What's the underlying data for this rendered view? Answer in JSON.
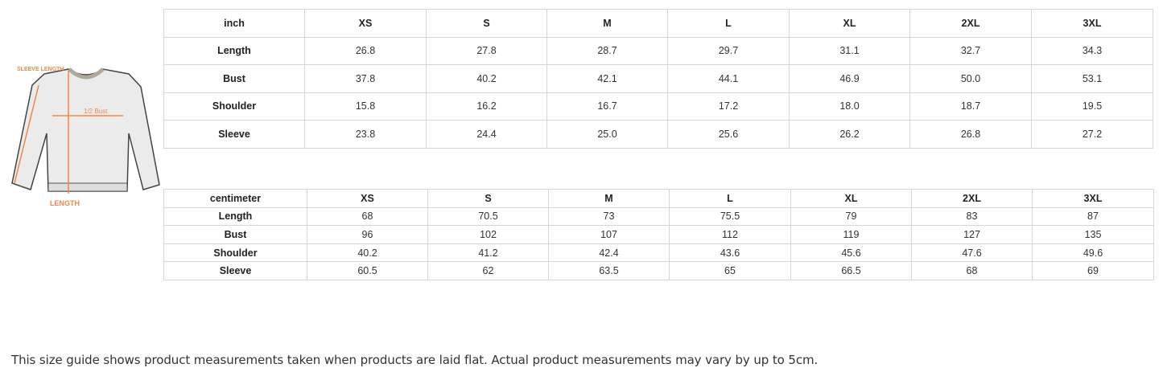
{
  "illustration": {
    "labels": {
      "sleeve": "SLEEVE LENGTH",
      "bust": "1/2 Bust",
      "length": "LENGTH"
    },
    "accent_color": "#f0874a"
  },
  "inch_table": {
    "headers": [
      "inch",
      "XS",
      "S",
      "M",
      "L",
      "XL",
      "2XL",
      "3XL"
    ],
    "rows": [
      {
        "label": "Length",
        "values": [
          "26.8",
          "27.8",
          "28.7",
          "29.7",
          "31.1",
          "32.7",
          "34.3"
        ]
      },
      {
        "label": "Bust",
        "values": [
          "37.8",
          "40.2",
          "42.1",
          "44.1",
          "46.9",
          "50.0",
          "53.1"
        ]
      },
      {
        "label": "Shoulder",
        "values": [
          "15.8",
          "16.2",
          "16.7",
          "17.2",
          "18.0",
          "18.7",
          "19.5"
        ]
      },
      {
        "label": "Sleeve",
        "values": [
          "23.8",
          "24.4",
          "25.0",
          "25.6",
          "26.2",
          "26.8",
          "27.2"
        ]
      }
    ]
  },
  "cm_table": {
    "headers": [
      "centimeter",
      "XS",
      "S",
      "M",
      "L",
      "XL",
      "2XL",
      "3XL"
    ],
    "rows": [
      {
        "label": "Length",
        "values": [
          "68",
          "70.5",
          "73",
          "75.5",
          "79",
          "83",
          "87"
        ]
      },
      {
        "label": "Bust",
        "values": [
          "96",
          "102",
          "107",
          "112",
          "119",
          "127",
          "135"
        ]
      },
      {
        "label": "Shoulder",
        "values": [
          "40.2",
          "41.2",
          "42.4",
          "43.6",
          "45.6",
          "47.6",
          "49.6"
        ]
      },
      {
        "label": "Sleeve",
        "values": [
          "60.5",
          "62",
          "63.5",
          "65",
          "66.5",
          "68",
          "69"
        ]
      }
    ]
  },
  "note": "This size guide shows product measurements taken when products are laid flat. Actual product measurements may vary by up to 5cm."
}
